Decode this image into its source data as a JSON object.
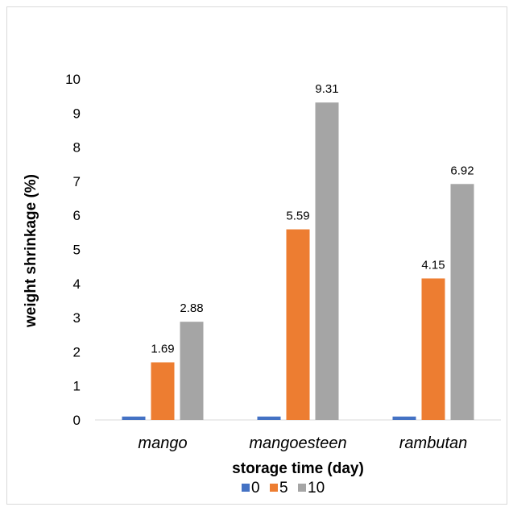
{
  "chart_data": {
    "type": "bar",
    "title": "",
    "xlabel": "storage time (day)",
    "ylabel": "weight shrinkage (%)",
    "ylim": [
      0,
      10
    ],
    "yticks": [
      0,
      1,
      2,
      3,
      4,
      5,
      6,
      7,
      8,
      9,
      10
    ],
    "categories": [
      "mango",
      "mangoesteen",
      "rambutan"
    ],
    "series": [
      {
        "name": "0",
        "color": "#4472c4",
        "values": [
          0.1,
          0.1,
          0.1
        ],
        "labels": [
          "",
          "",
          ""
        ]
      },
      {
        "name": "5",
        "color": "#ed7d31",
        "values": [
          1.69,
          5.59,
          4.15
        ],
        "labels": [
          "1.69",
          "5.59",
          "4.15"
        ]
      },
      {
        "name": "10",
        "color": "#a5a5a5",
        "values": [
          2.88,
          9.31,
          6.92
        ],
        "labels": [
          "2.88",
          "9.31",
          "6.92"
        ]
      }
    ],
    "grid": false,
    "legend": "bottom"
  }
}
